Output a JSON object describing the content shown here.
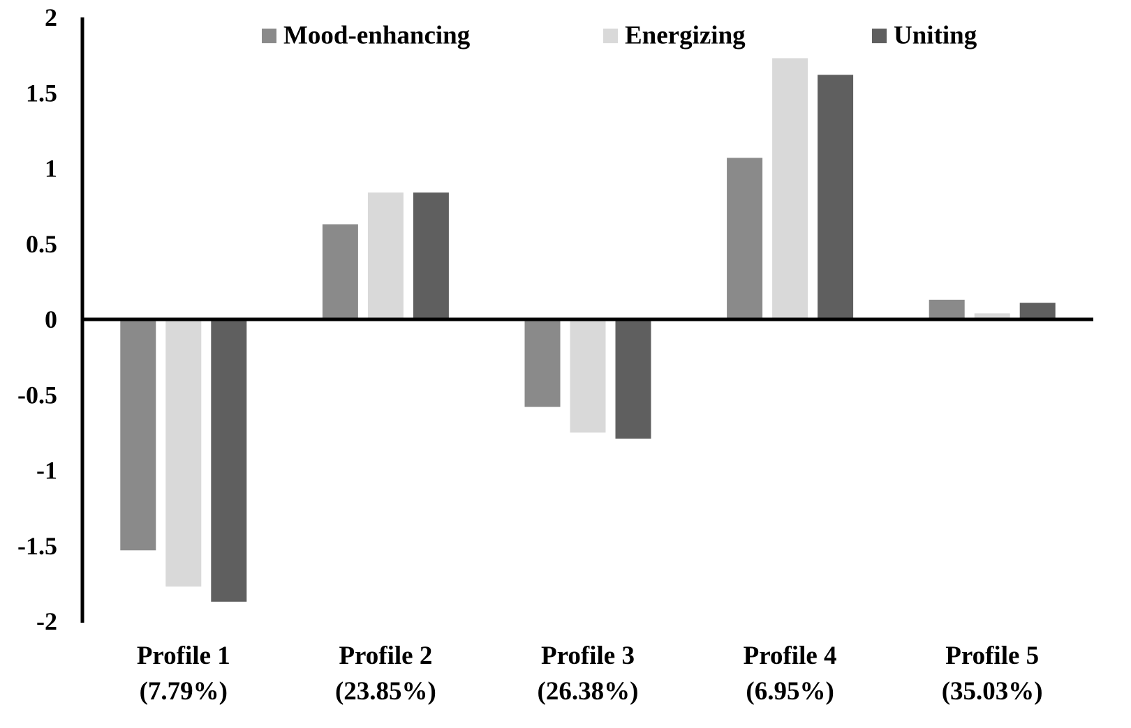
{
  "chart_data": {
    "type": "bar",
    "title": "",
    "xlabel": "",
    "ylabel": "",
    "ylim": [
      -2,
      2
    ],
    "yticks": [
      2,
      1.5,
      1,
      0.5,
      0,
      -0.5,
      -1,
      -1.5,
      -2
    ],
    "ytick_labels": [
      "2",
      "1.5",
      "1",
      "0.5",
      "0",
      "-0.5",
      "-1",
      "-1.5",
      "-2"
    ],
    "categories": [
      {
        "line1": "Profile 1",
        "line2": "(7.79%)"
      },
      {
        "line1": "Profile 2",
        "line2": "(23.85%)"
      },
      {
        "line1": "Profile 3",
        "line2": "(26.38%)"
      },
      {
        "line1": "Profile 4",
        "line2": "(6.95%)"
      },
      {
        "line1": "Profile 5",
        "line2": "(35.03%)"
      }
    ],
    "series": [
      {
        "name": "Mood-enhancing",
        "color": "#8a8a8a",
        "values": [
          -1.53,
          0.63,
          -0.58,
          1.07,
          0.13
        ]
      },
      {
        "name": "Energizing",
        "color": "#d9d9d9",
        "values": [
          -1.77,
          0.84,
          -0.75,
          1.73,
          0.04
        ]
      },
      {
        "name": "Uniting",
        "color": "#5f5f5f",
        "values": [
          -1.87,
          0.84,
          -0.79,
          1.62,
          0.11
        ]
      }
    ],
    "grid": false,
    "legend_position": "top"
  }
}
